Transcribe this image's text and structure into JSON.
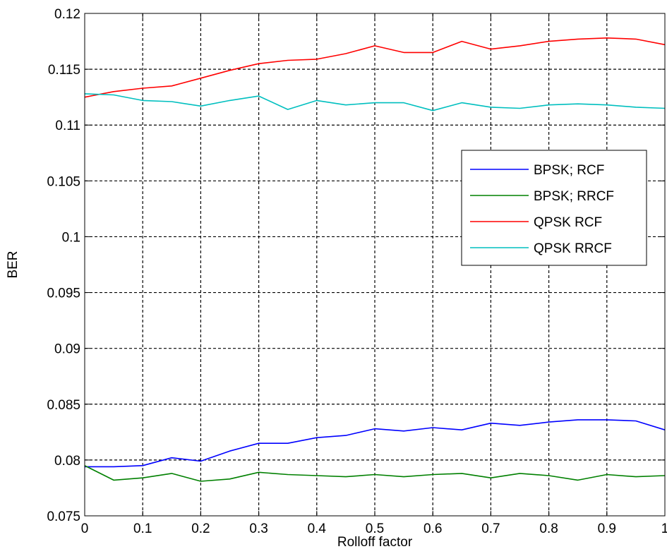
{
  "chart_data": {
    "type": "line",
    "title": "",
    "xlabel": "Rolloff factor",
    "ylabel": "BER",
    "xlim": [
      0,
      1
    ],
    "ylim": [
      0.075,
      0.12
    ],
    "x_ticks": [
      "0",
      "0.1",
      "0.2",
      "0.3",
      "0.4",
      "0.5",
      "0.6",
      "0.7",
      "0.8",
      "0.9",
      "1"
    ],
    "y_ticks": [
      "0.075",
      "0.08",
      "0.085",
      "0.09",
      "0.095",
      "0.1",
      "0.105",
      "0.11",
      "0.115",
      "0.12"
    ],
    "grid": true,
    "legend_position": "right",
    "x": [
      0,
      0.05,
      0.1,
      0.15,
      0.2,
      0.25,
      0.3,
      0.35,
      0.4,
      0.45,
      0.5,
      0.55,
      0.6,
      0.65,
      0.7,
      0.75,
      0.8,
      0.85,
      0.9,
      0.95,
      1.0
    ],
    "series": [
      {
        "name": "BPSK; RCF",
        "color": "#0000ff",
        "values": [
          0.0794,
          0.0794,
          0.0795,
          0.0802,
          0.0799,
          0.0808,
          0.0815,
          0.0815,
          0.082,
          0.0822,
          0.0828,
          0.0826,
          0.0829,
          0.0827,
          0.0833,
          0.0831,
          0.0834,
          0.0836,
          0.0836,
          0.0835,
          0.0827
        ]
      },
      {
        "name": "BPSK; RRCF",
        "color": "#008000",
        "values": [
          0.0795,
          0.0782,
          0.0784,
          0.0788,
          0.0781,
          0.0783,
          0.0789,
          0.0787,
          0.0786,
          0.0785,
          0.0787,
          0.0785,
          0.0787,
          0.0788,
          0.0784,
          0.0788,
          0.0786,
          0.0782,
          0.0787,
          0.0785,
          0.0786
        ]
      },
      {
        "name": "QPSK RCF",
        "color": "#ff0000",
        "values": [
          0.1125,
          0.113,
          0.1133,
          0.1135,
          0.1142,
          0.1149,
          0.1155,
          0.1158,
          0.1159,
          0.1164,
          0.1171,
          0.1165,
          0.1165,
          0.1175,
          0.1168,
          0.1171,
          0.1175,
          0.1177,
          0.1178,
          0.1177,
          0.1172
        ]
      },
      {
        "name": "QPSK RRCF",
        "color": "#00bfbf",
        "values": [
          0.1128,
          0.1127,
          0.1122,
          0.1121,
          0.1117,
          0.1122,
          0.1126,
          0.1114,
          0.1122,
          0.1118,
          0.112,
          0.112,
          0.1113,
          0.112,
          0.1116,
          0.1115,
          0.1118,
          0.1119,
          0.1118,
          0.1116,
          0.1115
        ]
      }
    ]
  }
}
